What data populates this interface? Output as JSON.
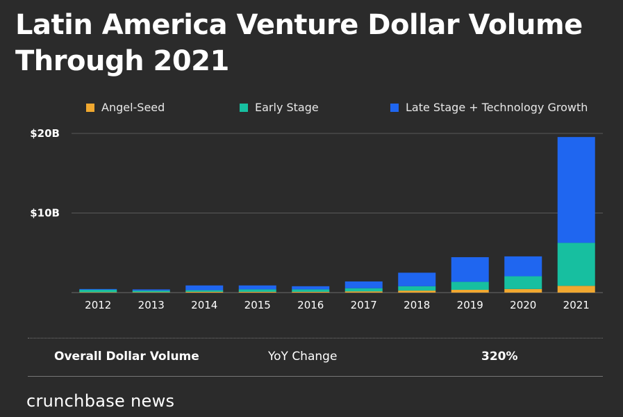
{
  "title_line1": "Latin America Venture Dollar Volume",
  "title_line2": "Through 2021",
  "legend": [
    {
      "label": "Angel-Seed",
      "color": "#f0a830"
    },
    {
      "label": "Early Stage",
      "color": "#17bfa0"
    },
    {
      "label": "Late Stage + Technology Growth",
      "color": "#1f66f0"
    }
  ],
  "chart_data": {
    "type": "bar",
    "stacked": true,
    "title": "Latin America Venture Dollar Volume Through 2021",
    "categories": [
      "2012",
      "2013",
      "2014",
      "2015",
      "2016",
      "2017",
      "2018",
      "2019",
      "2020",
      "2021"
    ],
    "series": [
      {
        "name": "Angel-Seed",
        "color": "#f0a830",
        "values": [
          0.05,
          0.05,
          0.1,
          0.1,
          0.1,
          0.15,
          0.25,
          0.35,
          0.45,
          0.85
        ]
      },
      {
        "name": "Early Stage",
        "color": "#17bfa0",
        "values": [
          0.3,
          0.2,
          0.2,
          0.3,
          0.3,
          0.4,
          0.55,
          1.0,
          1.6,
          5.4
        ]
      },
      {
        "name": "Late Stage + Technology Growth",
        "color": "#1f66f0",
        "values": [
          0.1,
          0.15,
          0.6,
          0.5,
          0.4,
          0.85,
          1.7,
          3.1,
          2.5,
          13.3
        ]
      }
    ],
    "yticks": [
      {
        "value": 10,
        "label": "$10B"
      },
      {
        "value": 20,
        "label": "$20B"
      }
    ],
    "ylim": [
      0,
      20
    ],
    "xlabel": "",
    "ylabel": "",
    "grid": true,
    "legend_position": "top"
  },
  "footer": {
    "label1": "Overall Dollar Volume",
    "label2": "YoY Change",
    "label3": "320%"
  },
  "brand": "crunchbase news"
}
